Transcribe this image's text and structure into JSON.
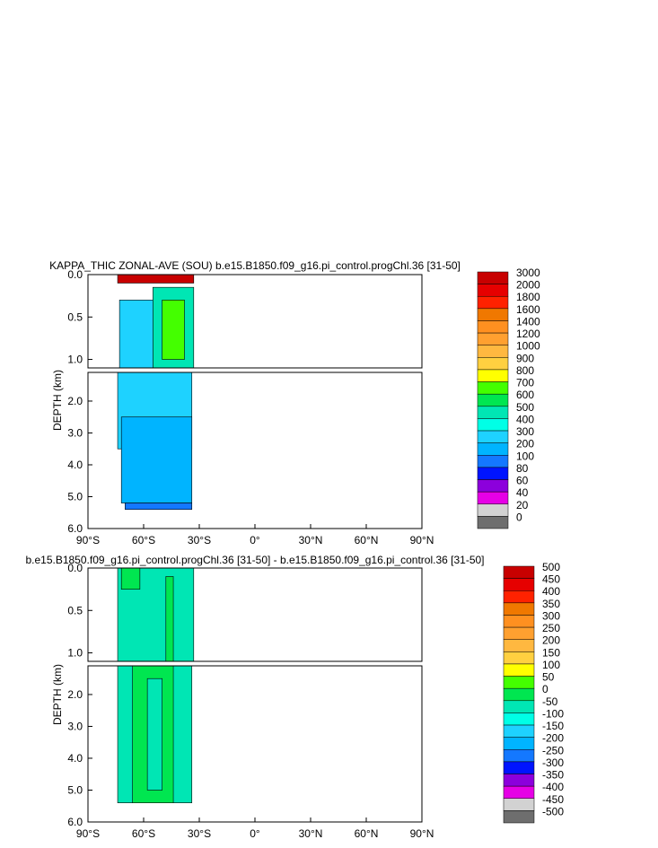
{
  "chart_data": [
    {
      "type": "contour",
      "title": "KAPPA_THIC ZONAL-AVE (SOU) b.e15.B1850.f09_g16.pi_control.progChl.36 [31-50]",
      "ylabel": "DEPTH (km)",
      "x_range": [
        -90,
        90
      ],
      "x_ticks": [
        {
          "value": -90,
          "label": "90°S"
        },
        {
          "value": -60,
          "label": "60°S"
        },
        {
          "value": -30,
          "label": "30°S"
        },
        {
          "value": 0,
          "label": "0°"
        },
        {
          "value": 30,
          "label": "30°N"
        },
        {
          "value": 60,
          "label": "60°N"
        },
        {
          "value": 90,
          "label": "90°N"
        }
      ],
      "upper_y_range": [
        0,
        1.1
      ],
      "upper_y_ticks": [
        {
          "value": 0,
          "label": "0.0"
        },
        {
          "value": 0.5,
          "label": "0.5"
        },
        {
          "value": 1.0,
          "label": "1.0"
        }
      ],
      "lower_y_range": [
        1.1,
        6.0
      ],
      "lower_y_ticks": [
        {
          "value": 2,
          "label": "2.0"
        },
        {
          "value": 3,
          "label": "3.0"
        },
        {
          "value": 4,
          "label": "4.0"
        },
        {
          "value": 5,
          "label": "5.0"
        },
        {
          "value": 6,
          "label": "6.0"
        }
      ],
      "colorbar_labels": [
        "3000",
        "2000",
        "1800",
        "1600",
        "1400",
        "1200",
        "1000",
        "900",
        "800",
        "700",
        "600",
        "500",
        "400",
        "300",
        "200",
        "100",
        "80",
        "60",
        "40",
        "20",
        "0"
      ],
      "colorbar_colors": [
        "#c80000",
        "#e60000",
        "#ff2200",
        "#f07800",
        "#ff9020",
        "#ffa030",
        "#ffb840",
        "#ffd040",
        "#ffff00",
        "#44ff00",
        "#00e650",
        "#00e6b4",
        "#00ffe6",
        "#1ed2ff",
        "#00b4ff",
        "#1478ff",
        "#0014ff",
        "#8c00dc",
        "#e600e6",
        "#d2d2d2",
        "#6e6e6e"
      ],
      "data_extent_lat": [
        -74,
        -33
      ],
      "regions_upper": [
        {
          "color": "#1ed2ff",
          "lat": [
            -73,
            -55
          ],
          "depth": [
            0.3,
            1.1
          ]
        },
        {
          "color": "#00e6b4",
          "lat": [
            -55,
            -33
          ],
          "depth": [
            0.15,
            1.1
          ]
        },
        {
          "color": "#44ff00",
          "lat": [
            -50,
            -38
          ],
          "depth": [
            0.3,
            1.0
          ]
        },
        {
          "color": "#c80000",
          "lat": [
            -74,
            -33
          ],
          "depth": [
            0,
            0.1
          ]
        }
      ],
      "regions_lower": [
        {
          "color": "#1ed2ff",
          "lat": [
            -74,
            -34
          ],
          "depth": [
            1.1,
            3.5
          ]
        },
        {
          "color": "#00b4ff",
          "lat": [
            -72,
            -34
          ],
          "depth": [
            2.5,
            5.2
          ]
        },
        {
          "color": "#1478ff",
          "lat": [
            -70,
            -34
          ],
          "depth": [
            5.2,
            5.4
          ]
        }
      ]
    },
    {
      "type": "contour",
      "title": "b.e15.B1850.f09_g16.pi_control.progChl.36 [31-50] - b.e15.B1850.f09_g16.pi_control.36 [31-50]",
      "ylabel": "DEPTH (km)",
      "x_range": [
        -90,
        90
      ],
      "x_ticks": [
        {
          "value": -90,
          "label": "90°S"
        },
        {
          "value": -60,
          "label": "60°S"
        },
        {
          "value": -30,
          "label": "30°S"
        },
        {
          "value": 0,
          "label": "0°"
        },
        {
          "value": 30,
          "label": "30°N"
        },
        {
          "value": 60,
          "label": "60°N"
        },
        {
          "value": 90,
          "label": "90°N"
        }
      ],
      "upper_y_range": [
        0,
        1.1
      ],
      "upper_y_ticks": [
        {
          "value": 0,
          "label": "0.0"
        },
        {
          "value": 0.5,
          "label": "0.5"
        },
        {
          "value": 1.0,
          "label": "1.0"
        }
      ],
      "lower_y_range": [
        1.1,
        6.0
      ],
      "lower_y_ticks": [
        {
          "value": 2,
          "label": "2.0"
        },
        {
          "value": 3,
          "label": "3.0"
        },
        {
          "value": 4,
          "label": "4.0"
        },
        {
          "value": 5,
          "label": "5.0"
        },
        {
          "value": 6,
          "label": "6.0"
        }
      ],
      "colorbar_labels": [
        "500",
        "450",
        "400",
        "350",
        "300",
        "250",
        "200",
        "150",
        "100",
        "50",
        "0",
        "-50",
        "-100",
        "-150",
        "-200",
        "-250",
        "-300",
        "-350",
        "-400",
        "-450",
        "-500"
      ],
      "colorbar_colors": [
        "#c80000",
        "#e60000",
        "#ff2200",
        "#f07800",
        "#ff9020",
        "#ffa030",
        "#ffb840",
        "#ffd040",
        "#ffff00",
        "#44ff00",
        "#00e650",
        "#00e6b4",
        "#00ffe6",
        "#1ed2ff",
        "#00b4ff",
        "#1478ff",
        "#0014ff",
        "#8c00dc",
        "#e600e6",
        "#d2d2d2",
        "#6e6e6e"
      ],
      "data_extent_lat": [
        -74,
        -33
      ],
      "regions_upper": [
        {
          "color": "#00e6b4",
          "lat": [
            -74,
            -33
          ],
          "depth": [
            0,
            1.1
          ]
        },
        {
          "color": "#00e650",
          "lat": [
            -72,
            -62
          ],
          "depth": [
            0,
            0.25
          ]
        },
        {
          "color": "#00e650",
          "lat": [
            -48,
            -44
          ],
          "depth": [
            0.1,
            1.1
          ]
        }
      ],
      "regions_lower": [
        {
          "color": "#00e6b4",
          "lat": [
            -74,
            -34
          ],
          "depth": [
            1.1,
            5.4
          ]
        },
        {
          "color": "#00e650",
          "lat": [
            -66,
            -44
          ],
          "depth": [
            1.1,
            5.4
          ]
        },
        {
          "color": "#00e6b4",
          "lat": [
            -58,
            -50
          ],
          "depth": [
            1.5,
            5.0
          ]
        }
      ]
    }
  ]
}
